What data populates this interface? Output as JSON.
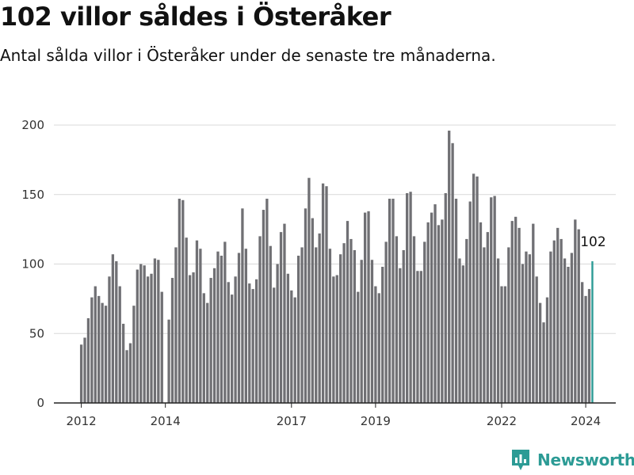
{
  "header": {
    "title": "102 villor såldes i Österåker",
    "subtitle": "Antal sålda villor i Österåker under de senaste tre månaderna."
  },
  "brand": {
    "name": "Newsworthy",
    "color": "#2c9b95"
  },
  "chart_data": {
    "type": "bar",
    "x_start": "2012-01",
    "x_step": "month",
    "values": [
      42,
      47,
      61,
      76,
      84,
      77,
      72,
      70,
      91,
      107,
      102,
      84,
      57,
      38,
      43,
      70,
      96,
      100,
      99,
      91,
      93,
      104,
      103,
      80,
      0,
      60,
      90,
      112,
      147,
      146,
      119,
      92,
      94,
      117,
      111,
      79,
      72,
      90,
      97,
      109,
      106,
      116,
      87,
      78,
      91,
      108,
      140,
      111,
      86,
      82,
      89,
      120,
      139,
      147,
      113,
      83,
      100,
      123,
      129,
      93,
      81,
      76,
      106,
      112,
      140,
      162,
      133,
      112,
      122,
      158,
      156,
      111,
      91,
      92,
      107,
      115,
      131,
      118,
      110,
      80,
      103,
      137,
      138,
      103,
      84,
      79,
      98,
      116,
      147,
      147,
      120,
      97,
      110,
      151,
      152,
      120,
      95,
      95,
      116,
      130,
      137,
      143,
      128,
      132,
      151,
      196,
      187,
      147,
      104,
      99,
      118,
      145,
      165,
      163,
      130,
      112,
      123,
      148,
      149,
      104,
      84,
      84,
      112,
      131,
      134,
      126,
      100,
      109,
      107,
      129,
      91,
      72,
      58,
      76,
      109,
      117,
      126,
      118,
      104,
      98,
      108,
      132,
      125,
      87,
      77,
      82,
      102
    ],
    "highlight_last": true,
    "highlight_label": "102",
    "bar_color": "#707074",
    "highlight_color": "#2c9b95",
    "yticks": [
      0,
      50,
      100,
      150,
      200
    ],
    "xticks": [
      {
        "label": "2012",
        "month_index": 0
      },
      {
        "label": "2014",
        "month_index": 24
      },
      {
        "label": "2017",
        "month_index": 60
      },
      {
        "label": "2019",
        "month_index": 84
      },
      {
        "label": "2022",
        "month_index": 120
      },
      {
        "label": "2024",
        "month_index": 144
      }
    ],
    "ylim": [
      0,
      200
    ],
    "grid": true
  }
}
